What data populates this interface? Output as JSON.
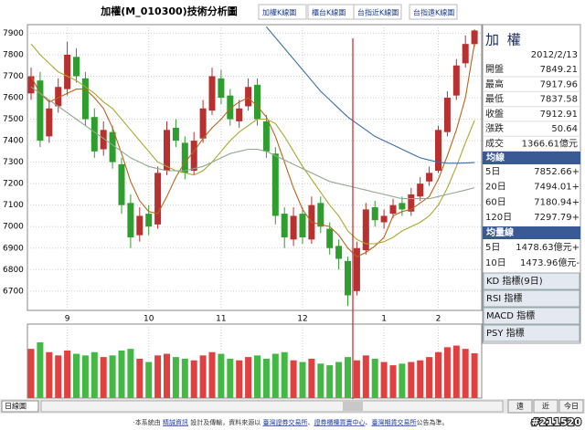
{
  "header": {
    "title": "加權(M_010300)技術分析圖",
    "tabs": [
      "加權K線圖",
      "櫃台K線圖",
      "台指近K線圖",
      "台指遠K線圖"
    ]
  },
  "chart_data": [
    {
      "type": "candlestick",
      "categories": [
        null,
        null,
        null,
        null,
        "9",
        null,
        null,
        null,
        null,
        null,
        null,
        null,
        null,
        "10",
        null,
        null,
        null,
        null,
        null,
        null,
        null,
        "11",
        null,
        null,
        null,
        null,
        null,
        null,
        null,
        null,
        "12",
        null,
        null,
        null,
        null,
        null,
        null,
        null,
        null,
        "1",
        null,
        null,
        null,
        null,
        null,
        "2",
        null,
        null,
        null,
        null
      ],
      "open": [
        7620,
        7680,
        7420,
        7560,
        7640,
        7790,
        7690,
        7510,
        7360,
        7440,
        7290,
        7110,
        6960,
        7060,
        7010,
        7260,
        7460,
        7390,
        7260,
        7410,
        7540,
        7690,
        7610,
        7490,
        7560,
        7660,
        7490,
        7340,
        7060,
        6940,
        7060,
        6940,
        7110,
        6990,
        6910,
        6840,
        6700,
        6890,
        7090,
        7020,
        7060,
        7110,
        7070,
        7140,
        7210,
        7260,
        7440,
        7610,
        7760,
        7849.21
      ],
      "high": [
        7740,
        7720,
        7590,
        7690,
        7860,
        7830,
        7720,
        7550,
        7490,
        7470,
        7320,
        7150,
        7090,
        7100,
        7280,
        7490,
        7500,
        7420,
        7440,
        7590,
        7740,
        7730,
        7640,
        7590,
        7690,
        7690,
        7520,
        7370,
        7090,
        7090,
        7090,
        7140,
        7140,
        7020,
        6940,
        6860,
        6930,
        7110,
        7120,
        7080,
        7130,
        7140,
        7180,
        7230,
        7280,
        7470,
        7630,
        7780,
        7890,
        7917.96
      ],
      "low": [
        7590,
        7370,
        7390,
        7530,
        7610,
        7670,
        7470,
        7320,
        7330,
        7270,
        7060,
        6900,
        6930,
        6960,
        6990,
        7240,
        7370,
        7220,
        7240,
        7390,
        7520,
        7570,
        7470,
        7460,
        7540,
        7470,
        7320,
        7010,
        6900,
        6910,
        6920,
        6920,
        6970,
        6870,
        6800,
        6630,
        6680,
        6870,
        7000,
        6990,
        7040,
        7050,
        7050,
        7120,
        7190,
        7250,
        7420,
        7590,
        7740,
        7837.58
      ],
      "close": [
        7700,
        7400,
        7550,
        7650,
        7800,
        7700,
        7500,
        7350,
        7450,
        7300,
        7100,
        6950,
        7050,
        7000,
        7250,
        7450,
        7400,
        7250,
        7400,
        7550,
        7700,
        7600,
        7500,
        7550,
        7650,
        7500,
        7350,
        7050,
        6950,
        7050,
        6950,
        7100,
        7000,
        6900,
        6850,
        6680,
        6900,
        7080,
        7030,
        7050,
        7100,
        7080,
        7150,
        7200,
        7250,
        7450,
        7600,
        7750,
        7850,
        7912.91
      ],
      "series": [
        {
          "name": "5日",
          "color": "#b8651e",
          "values": [
            7700,
            7620,
            7580,
            7600,
            7620,
            7640,
            7640,
            7600,
            7550,
            7460,
            7340,
            7210,
            7120,
            7070,
            7060,
            7140,
            7230,
            7300,
            7350,
            7410,
            7460,
            7500,
            7550,
            7580,
            7600,
            7560,
            7510,
            7420,
            7300,
            7180,
            7080,
            7020,
            7010,
            7000,
            6960,
            6900,
            6860,
            6880,
            6910,
            6950,
            7050,
            7070,
            7080,
            7110,
            7140,
            7220,
            7330,
            7450,
            7600,
            7852.66
          ]
        },
        {
          "name": "20日",
          "color": "#a8a832",
          "values": [
            7850,
            7800,
            7760,
            7720,
            7700,
            7680,
            7650,
            7620,
            7580,
            7550,
            7500,
            7450,
            7400,
            7350,
            7300,
            7280,
            7260,
            7250,
            7240,
            7260,
            7300,
            7350,
            7400,
            7440,
            7470,
            7500,
            7500,
            7480,
            7420,
            7350,
            7280,
            7220,
            7160,
            7100,
            7050,
            6980,
            6940,
            6920,
            6920,
            6930,
            6950,
            6980,
            7000,
            7020,
            7050,
            7100,
            7180,
            7280,
            7390,
            7494.01
          ]
        },
        {
          "name": "60日",
          "color": "#8fa88f",
          "values": [
            7650,
            7620,
            7590,
            7560,
            7530,
            7500,
            7470,
            7440,
            7410,
            7380,
            7350,
            7320,
            7300,
            7280,
            7270,
            7260,
            7260,
            7260,
            7270,
            7280,
            7300,
            7320,
            7340,
            7350,
            7360,
            7360,
            7350,
            7330,
            7310,
            7290,
            7270,
            7250,
            7230,
            7210,
            7200,
            7190,
            7180,
            7170,
            7160,
            7150,
            7140,
            7130,
            7130,
            7130,
            7130,
            7140,
            7150,
            7160,
            7170,
            7180.94
          ]
        },
        {
          "name": "120日",
          "color": "#3a6ea8",
          "values": [
            null,
            null,
            null,
            null,
            null,
            null,
            null,
            null,
            null,
            null,
            null,
            null,
            null,
            null,
            null,
            null,
            null,
            null,
            null,
            null,
            null,
            null,
            null,
            null,
            null,
            null,
            7930,
            7880,
            7830,
            7780,
            7730,
            7680,
            7630,
            7590,
            7550,
            7510,
            7480,
            7450,
            7420,
            7400,
            7380,
            7360,
            7340,
            7320,
            7310,
            7300,
            7295,
            7295,
            7296,
            7297.79
          ]
        }
      ],
      "ylim": [
        6610,
        7940
      ],
      "yticks": [
        6700,
        6800,
        6900,
        7000,
        7100,
        7200,
        7300,
        7400,
        7500,
        7600,
        7700,
        7800,
        7900
      ],
      "grid": true,
      "up_color": "#b83030",
      "down_color": "#2e9e2e"
    },
    {
      "type": "bar",
      "values": [
        1500,
        1700,
        1400,
        1300,
        1450,
        1350,
        1300,
        1400,
        1250,
        1300,
        1450,
        1500,
        1200,
        1100,
        1300,
        1350,
        1250,
        1200,
        1150,
        1300,
        1400,
        1350,
        1200,
        1150,
        1250,
        1300,
        1200,
        1350,
        1400,
        1150,
        1100,
        1200,
        1050,
        1000,
        1100,
        1250,
        1150,
        1300,
        1200,
        1100,
        1000,
        1050,
        1100,
        1150,
        1250,
        1400,
        1550,
        1600,
        1500,
        1366.61
      ],
      "ylim": [
        0,
        2200
      ],
      "up_color": "#e04040",
      "down_color": "#44b844"
    }
  ],
  "panel": {
    "name": "加 權",
    "date": "2012/2/13",
    "rows": [
      [
        "開盤",
        "7849.21"
      ],
      [
        "最高",
        "7917.96"
      ],
      [
        "最低",
        "7837.58"
      ],
      [
        "收盤",
        "7912.91"
      ],
      [
        "漲跌",
        "50.64"
      ],
      [
        "成交",
        "1366.61億元"
      ]
    ],
    "ma_title": "均線",
    "ma_values": [
      "7852.66+",
      "7494.01+",
      "7180.94+",
      "7297.79+"
    ],
    "vol_title": "均量線",
    "vol_rows": [
      [
        "5日",
        "1478.63億元+"
      ],
      [
        "10日",
        "1473.96億元-"
      ]
    ],
    "buttons": [
      "KD 指標(9日)",
      "RSI 指標",
      "MACD 指標",
      "PSY 指標"
    ]
  },
  "controls": {
    "period": "日線圖",
    "buttons": [
      "遠",
      "近",
      "今日"
    ]
  },
  "footer": {
    "parts": [
      "‧本系統由 ",
      "精誠資訊",
      " 設計及傳輸，資料來源以 ",
      "臺灣證券交易所",
      "、",
      "證券櫃檯買賣中心",
      "、",
      "臺灣期貨交易所",
      "公告為準。"
    ],
    "watermark": "#211520"
  }
}
